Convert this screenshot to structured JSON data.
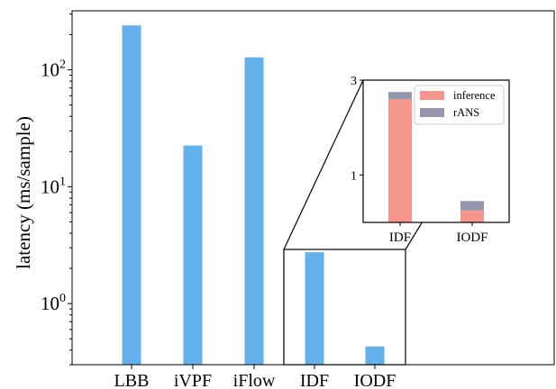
{
  "chart_data": [
    {
      "type": "bar",
      "ylabel": "latency (ms/sample)",
      "yscale": "log",
      "ylim": [
        0.3,
        320
      ],
      "categories": [
        "LBB",
        "iVPF",
        "iFlow",
        "IDF",
        "IODF"
      ],
      "values": [
        240,
        22.5,
        128,
        2.75,
        0.43
      ],
      "color": "#63b1ea",
      "ytick_labels": [
        {
          "base": "10",
          "exp": "0",
          "value": 1
        },
        {
          "base": "10",
          "exp": "1",
          "value": 10
        },
        {
          "base": "10",
          "exp": "2",
          "value": 100
        }
      ],
      "zoom_box_categories": [
        "IDF",
        "IODF"
      ]
    },
    {
      "type": "bar",
      "stacked": true,
      "categories": [
        "IDF",
        "IODF"
      ],
      "ylim": [
        0,
        3
      ],
      "yticks": [
        1,
        3
      ],
      "ytick_labels": [
        "1",
        "3"
      ],
      "legend_position": "upper-right",
      "series": [
        {
          "name": "inference",
          "color": "#f5958b",
          "values": [
            2.6,
            0.25
          ]
        },
        {
          "name": "rANS",
          "color": "#9496ab",
          "values": [
            0.15,
            0.2
          ]
        }
      ]
    }
  ]
}
